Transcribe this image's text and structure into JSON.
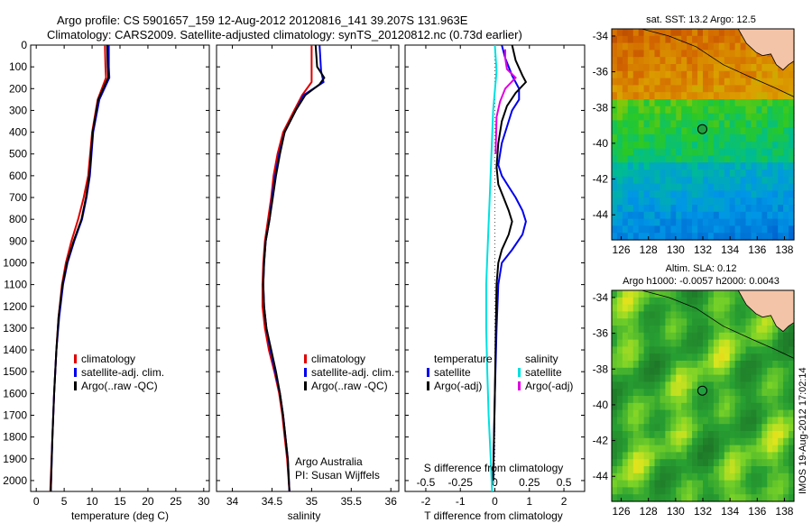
{
  "header": {
    "title_line1": "Argo profile: CS 5901657_159 12-Aug-2012 20120816_141 39.207S 131.963E",
    "title_line2": "Climatology: CARS2009. Satellite-adjusted climatology: synTS_20120812.nc (0.73d earlier)"
  },
  "colors": {
    "climatology": "#e00000",
    "satellite": "#0000ee",
    "argo": "#000000",
    "salinity_satellite": "#00e0e0",
    "salinity_argo": "#e000e0",
    "land": "#f4c4a8"
  },
  "chart_data": [
    {
      "type": "line",
      "id": "temperature",
      "xlabel": "temperature (deg C)",
      "xlim": [
        -1,
        31
      ],
      "xticks": [
        0,
        5,
        10,
        15,
        20,
        25,
        30
      ],
      "ylim": [
        2050,
        0
      ],
      "yticks": [
        0,
        100,
        200,
        300,
        400,
        500,
        600,
        700,
        800,
        900,
        1000,
        1100,
        1200,
        1300,
        1400,
        1500,
        1600,
        1700,
        1800,
        1900,
        2000
      ],
      "legend": [
        "climatology",
        "satellite-adj. clim.",
        "Argo(..raw -QC)"
      ],
      "legend_position": "lower-right",
      "series": [
        {
          "name": "climatology",
          "color": "#e00000",
          "points": [
            [
              12.3,
              0
            ],
            [
              12.4,
              100
            ],
            [
              12.5,
              150
            ],
            [
              11.0,
              250
            ],
            [
              10.0,
              400
            ],
            [
              9.3,
              600
            ],
            [
              8.5,
              700
            ],
            [
              7.5,
              800
            ],
            [
              6.3,
              900
            ],
            [
              5.3,
              1000
            ],
            [
              4.6,
              1100
            ],
            [
              4.0,
              1250
            ],
            [
              3.6,
              1400
            ],
            [
              3.2,
              1600
            ],
            [
              2.9,
              1800
            ],
            [
              2.5,
              2050
            ]
          ]
        },
        {
          "name": "satellite-adj. clim.",
          "color": "#0000ee",
          "points": [
            [
              13.0,
              0
            ],
            [
              13.0,
              100
            ],
            [
              13.1,
              150
            ],
            [
              11.3,
              250
            ],
            [
              10.2,
              400
            ],
            [
              9.6,
              600
            ],
            [
              9.0,
              700
            ],
            [
              8.2,
              800
            ],
            [
              6.8,
              900
            ],
            [
              5.6,
              1000
            ],
            [
              4.8,
              1100
            ],
            [
              4.1,
              1250
            ],
            [
              3.6,
              1400
            ],
            [
              3.2,
              1600
            ],
            [
              2.9,
              1800
            ],
            [
              2.6,
              2050
            ]
          ]
        },
        {
          "name": "Argo(..raw -QC)",
          "color": "#000000",
          "points": [
            [
              12.7,
              0
            ],
            [
              12.8,
              100
            ],
            [
              12.9,
              150
            ],
            [
              11.1,
              250
            ],
            [
              10.1,
              400
            ],
            [
              9.5,
              600
            ],
            [
              8.9,
              700
            ],
            [
              8.1,
              800
            ],
            [
              6.7,
              900
            ],
            [
              5.5,
              1000
            ],
            [
              4.7,
              1100
            ],
            [
              4.0,
              1250
            ],
            [
              3.6,
              1400
            ],
            [
              3.2,
              1600
            ],
            [
              2.9,
              1800
            ],
            [
              2.6,
              2050
            ]
          ]
        }
      ]
    },
    {
      "type": "line",
      "id": "salinity",
      "xlabel": "salinity",
      "xlim": [
        33.8,
        36.1
      ],
      "xticks": [
        34,
        34.5,
        35,
        35.5,
        36
      ],
      "ylim": [
        2050,
        0
      ],
      "legend": [
        "climatology",
        "satellite-adj. clim.",
        "Argo(..raw -QC)"
      ],
      "legend_position": "lower-right",
      "annotation": [
        "Argo Australia",
        "PI: Susan Wijffels"
      ],
      "series": [
        {
          "name": "climatology",
          "color": "#e00000",
          "points": [
            [
              35.0,
              0
            ],
            [
              35.0,
              120
            ],
            [
              35.0,
              170
            ],
            [
              34.88,
              230
            ],
            [
              34.78,
              300
            ],
            [
              34.64,
              400
            ],
            [
              34.57,
              500
            ],
            [
              34.52,
              600
            ],
            [
              34.49,
              700
            ],
            [
              34.45,
              800
            ],
            [
              34.41,
              900
            ],
            [
              34.39,
              1000
            ],
            [
              34.38,
              1100
            ],
            [
              34.38,
              1200
            ],
            [
              34.41,
              1300
            ],
            [
              34.46,
              1400
            ],
            [
              34.53,
              1500
            ],
            [
              34.59,
              1600
            ],
            [
              34.63,
              1700
            ],
            [
              34.66,
              1800
            ],
            [
              34.69,
              1900
            ],
            [
              34.72,
              2050
            ]
          ]
        },
        {
          "name": "satellite-adj. clim.",
          "color": "#0000ee",
          "points": [
            [
              35.1,
              0
            ],
            [
              35.12,
              120
            ],
            [
              35.15,
              170
            ],
            [
              34.9,
              230
            ],
            [
              34.8,
              300
            ],
            [
              34.66,
              400
            ],
            [
              34.59,
              500
            ],
            [
              34.54,
              600
            ],
            [
              34.5,
              700
            ],
            [
              34.47,
              800
            ],
            [
              34.42,
              900
            ],
            [
              34.4,
              1000
            ],
            [
              34.39,
              1100
            ],
            [
              34.4,
              1200
            ],
            [
              34.43,
              1300
            ],
            [
              34.48,
              1400
            ],
            [
              34.54,
              1500
            ],
            [
              34.6,
              1600
            ],
            [
              34.64,
              1700
            ],
            [
              34.67,
              1800
            ],
            [
              34.7,
              1900
            ],
            [
              34.72,
              2050
            ]
          ]
        },
        {
          "name": "Argo(..raw -QC)",
          "color": "#000000",
          "points": [
            [
              35.05,
              0
            ],
            [
              35.07,
              100
            ],
            [
              35.16,
              150
            ],
            [
              35.1,
              180
            ],
            [
              34.92,
              230
            ],
            [
              34.8,
              300
            ],
            [
              34.66,
              400
            ],
            [
              34.6,
              500
            ],
            [
              34.55,
              600
            ],
            [
              34.51,
              700
            ],
            [
              34.47,
              800
            ],
            [
              34.42,
              900
            ],
            [
              34.4,
              1000
            ],
            [
              34.39,
              1100
            ],
            [
              34.4,
              1200
            ],
            [
              34.43,
              1300
            ],
            [
              34.49,
              1400
            ],
            [
              34.55,
              1500
            ],
            [
              34.6,
              1600
            ],
            [
              34.64,
              1700
            ],
            [
              34.67,
              1800
            ],
            [
              34.7,
              1900
            ],
            [
              34.72,
              2050
            ]
          ]
        }
      ]
    },
    {
      "type": "line",
      "id": "difference",
      "xlabel": "T difference from climatology",
      "xlabel_top": "S difference from climatology",
      "xlim": [
        -2.6,
        2.6
      ],
      "xticks": [
        -2,
        -1,
        0,
        1,
        2
      ],
      "xticklabels_top": [
        "-0.5",
        "-0.25",
        "0",
        "0.25",
        "0.5"
      ],
      "ylim": [
        2050,
        0
      ],
      "legend": [
        "temperature",
        "satellite",
        "Argo(-adj)",
        "salinity",
        "satellite",
        "Argo(-adj)"
      ],
      "legend_position": "lower-center",
      "series": [
        {
          "name": "satellite",
          "color": "#0000ee",
          "points": [
            [
              0.2,
              0
            ],
            [
              0.3,
              60
            ],
            [
              0.5,
              140
            ],
            [
              0.7,
              200
            ],
            [
              0.7,
              250
            ],
            [
              0.5,
              300
            ],
            [
              0.4,
              350
            ],
            [
              0.2,
              450
            ],
            [
              0.1,
              550
            ],
            [
              0.2,
              600
            ],
            [
              0.4,
              650
            ],
            [
              0.6,
              700
            ],
            [
              0.8,
              760
            ],
            [
              0.9,
              810
            ],
            [
              0.8,
              870
            ],
            [
              0.5,
              940
            ],
            [
              0.2,
              1000
            ],
            [
              0.1,
              1100
            ],
            [
              0.05,
              1300
            ],
            [
              0.0,
              1600
            ],
            [
              -0.05,
              2000
            ]
          ]
        },
        {
          "name": "Argo(-adj)",
          "color": "#000000",
          "points": [
            [
              0.5,
              0
            ],
            [
              0.6,
              70
            ],
            [
              0.8,
              140
            ],
            [
              0.9,
              170
            ],
            [
              0.6,
              220
            ],
            [
              0.35,
              280
            ],
            [
              0.2,
              350
            ],
            [
              0.1,
              450
            ],
            [
              0.05,
              560
            ],
            [
              0.1,
              640
            ],
            [
              0.25,
              700
            ],
            [
              0.4,
              760
            ],
            [
              0.5,
              810
            ],
            [
              0.4,
              870
            ],
            [
              0.2,
              940
            ],
            [
              0.1,
              1000
            ],
            [
              0.05,
              1100
            ],
            [
              0.03,
              1300
            ],
            [
              0.0,
              1600
            ],
            [
              -0.05,
              2000
            ]
          ]
        },
        {
          "name": "satellite",
          "color": "#00e0e0",
          "points": [
            [
              0.0,
              0
            ],
            [
              0.05,
              120
            ],
            [
              -0.05,
              300
            ],
            [
              -0.1,
              500
            ],
            [
              -0.15,
              700
            ],
            [
              -0.2,
              900
            ],
            [
              -0.25,
              1100
            ],
            [
              -0.25,
              1300
            ],
            [
              -0.22,
              1500
            ],
            [
              -0.18,
              1700
            ],
            [
              -0.12,
              1900
            ],
            [
              -0.08,
              2050
            ]
          ]
        },
        {
          "name": "Argo(-adj)",
          "color": "#e000e0",
          "points": [
            [
              0.3,
              20
            ],
            [
              0.3,
              60
            ],
            [
              0.35,
              110
            ],
            [
              0.6,
              150
            ],
            [
              0.3,
              200
            ],
            [
              0.15,
              260
            ],
            [
              0.05,
              330
            ],
            [
              0.02,
              500
            ]
          ]
        }
      ]
    }
  ],
  "maps": [
    {
      "id": "sst-map",
      "title_line1": "sat. SST: 13.2 Argo: 12.5",
      "title_line2": "",
      "xlim": [
        125.3,
        138.7
      ],
      "ylim": [
        -45.4,
        -33.6
      ],
      "xticks": [
        126,
        128,
        130,
        132,
        134,
        136,
        138
      ],
      "yticks": [
        -34,
        -36,
        -38,
        -40,
        -42,
        -44
      ],
      "argo_position": [
        131.963,
        -39.207
      ],
      "palette": "sst"
    },
    {
      "id": "sla-map",
      "title_line1": "Altim. SLA: 0.12",
      "title_line2": "Argo h1000: -0.0057 h2000: 0.0043",
      "xlim": [
        125.3,
        138.7
      ],
      "ylim": [
        -45.4,
        -33.6
      ],
      "xticks": [
        126,
        128,
        130,
        132,
        134,
        136,
        138
      ],
      "yticks": [
        -34,
        -36,
        -38,
        -40,
        -42,
        -44
      ],
      "argo_position": [
        131.963,
        -39.207
      ],
      "palette": "sla"
    }
  ],
  "footer": {
    "stamp": "IMOS 19-Aug-2012 17:02:14"
  }
}
